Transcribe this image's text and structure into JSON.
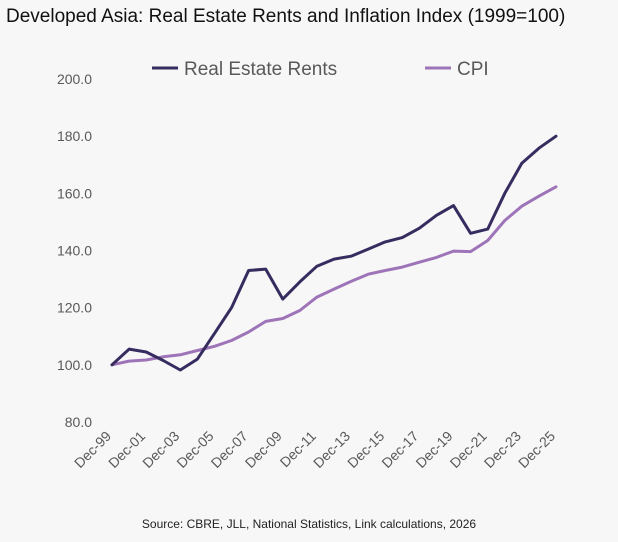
{
  "title": "Developed Asia: Real Estate Rents and Inflation Index (1999=100)",
  "source": "Source: CBRE, JLL, National Statistics, Link calculations, 2026",
  "chart_data": {
    "type": "line",
    "title": "Developed Asia: Real Estate Rents and Inflation Index (1999=100)",
    "xlabel": "",
    "ylabel": "",
    "ylim": [
      80,
      200
    ],
    "yticks": [
      "80.0",
      "100.0",
      "120.0",
      "140.0",
      "160.0",
      "180.0",
      "200.0"
    ],
    "x": [
      "Dec-99",
      "Dec-00",
      "Dec-01",
      "Dec-02",
      "Dec-03",
      "Dec-04",
      "Dec-05",
      "Dec-06",
      "Dec-07",
      "Dec-08",
      "Dec-09",
      "Dec-10",
      "Dec-11",
      "Dec-12",
      "Dec-13",
      "Dec-14",
      "Dec-15",
      "Dec-16",
      "Dec-17",
      "Dec-18",
      "Dec-19",
      "Dec-20",
      "Dec-21",
      "Dec-22",
      "Dec-23",
      "Dec-24",
      "Dec-25"
    ],
    "xtick_labels": [
      "Dec-99",
      "Dec-01",
      "Dec-03",
      "Dec-05",
      "Dec-07",
      "Dec-09",
      "Dec-11",
      "Dec-13",
      "Dec-15",
      "Dec-17",
      "Dec-19",
      "Dec-21",
      "Dec-23",
      "Dec-25"
    ],
    "grid": false,
    "legend_position": "top",
    "series": [
      {
        "name": "Real Estate Rents",
        "color": "#372c5f",
        "values": [
          100.0,
          105.5,
          104.5,
          101.5,
          98.2,
          102.0,
          111.0,
          120.0,
          133.0,
          133.5,
          123.0,
          129.0,
          134.5,
          137.0,
          138.0,
          140.5,
          143.0,
          144.5,
          147.8,
          152.3,
          155.7,
          146.0,
          147.5,
          160.0,
          170.5,
          175.8,
          180.0
        ]
      },
      {
        "name": "CPI",
        "color": "#9e74b8",
        "values": [
          100.0,
          101.3,
          101.7,
          102.8,
          103.5,
          105.0,
          106.5,
          108.5,
          111.5,
          115.2,
          116.2,
          119.0,
          123.7,
          126.5,
          129.2,
          131.7,
          133.0,
          134.2,
          135.9,
          137.6,
          139.8,
          139.6,
          143.5,
          150.5,
          155.5,
          159.0,
          162.3
        ]
      }
    ]
  }
}
